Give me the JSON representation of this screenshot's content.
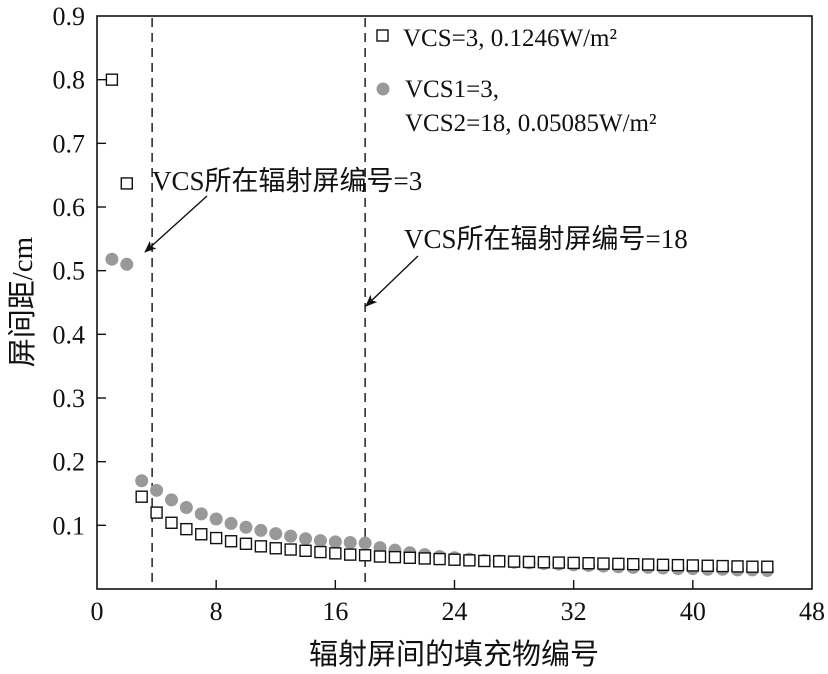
{
  "chart_data": {
    "type": "scatter",
    "xlabel": "辐射屏间的填充物编号",
    "ylabel": "屏间距/cm",
    "xlim": [
      0,
      48
    ],
    "ylim": [
      0,
      0.9
    ],
    "xticks": [
      0,
      8,
      16,
      24,
      32,
      40,
      48
    ],
    "xtick_labels": [
      "0",
      "8",
      "16",
      "24",
      "32",
      "40",
      "48"
    ],
    "yticks": [
      0.1,
      0.2,
      0.3,
      0.4,
      0.5,
      0.6,
      0.7,
      0.8,
      0.9
    ],
    "ytick_labels": [
      "0.1",
      "0.2",
      "0.3",
      "0.4",
      "0.5",
      "0.6",
      "0.7",
      "0.8",
      "0.9"
    ],
    "grid": false,
    "legend_position": "top-right",
    "series": [
      {
        "name": "VCS=3, 0.1246W/m²",
        "legend_lines": [
          "VCS=3, 0.1246W/m²"
        ],
        "marker": "open-square",
        "color": "#111111",
        "x": [
          1,
          2,
          3,
          4,
          5,
          6,
          7,
          8,
          9,
          10,
          11,
          12,
          13,
          14,
          15,
          16,
          17,
          18,
          19,
          20,
          21,
          22,
          23,
          24,
          25,
          26,
          27,
          28,
          29,
          30,
          31,
          32,
          33,
          34,
          35,
          36,
          37,
          38,
          39,
          40,
          41,
          42,
          43,
          44,
          45
        ],
        "y": [
          0.8,
          0.637,
          0.145,
          0.12,
          0.104,
          0.094,
          0.086,
          0.08,
          0.075,
          0.071,
          0.067,
          0.064,
          0.062,
          0.06,
          0.058,
          0.056,
          0.054,
          0.053,
          0.051,
          0.05,
          0.049,
          0.048,
          0.047,
          0.046,
          0.045,
          0.044,
          0.0435,
          0.043,
          0.0425,
          0.042,
          0.0415,
          0.041,
          0.0405,
          0.04,
          0.0395,
          0.039,
          0.0385,
          0.038,
          0.0375,
          0.037,
          0.0365,
          0.036,
          0.0355,
          0.035,
          0.035
        ]
      },
      {
        "name": "VCS1=3, VCS2=18, 0.05085W/m²",
        "legend_lines": [
          "VCS1=3,",
          "VCS2=18, 0.05085W/m²"
        ],
        "marker": "filled-circle",
        "color": "#999999",
        "x": [
          1,
          2,
          3,
          4,
          5,
          6,
          7,
          8,
          9,
          10,
          11,
          12,
          13,
          14,
          15,
          16,
          17,
          18,
          19,
          20,
          21,
          22,
          23,
          24,
          25,
          26,
          27,
          28,
          29,
          30,
          31,
          32,
          33,
          34,
          35,
          36,
          37,
          38,
          39,
          40,
          41,
          42,
          43,
          44,
          45
        ],
        "y": [
          0.518,
          0.51,
          0.17,
          0.155,
          0.14,
          0.128,
          0.118,
          0.11,
          0.103,
          0.097,
          0.092,
          0.087,
          0.083,
          0.079,
          0.076,
          0.074,
          0.073,
          0.072,
          0.065,
          0.061,
          0.057,
          0.054,
          0.051,
          0.049,
          0.047,
          0.045,
          0.044,
          0.042,
          0.041,
          0.04,
          0.039,
          0.038,
          0.037,
          0.036,
          0.035,
          0.034,
          0.034,
          0.033,
          0.032,
          0.032,
          0.031,
          0.031,
          0.03,
          0.03,
          0.029
        ]
      }
    ],
    "annotations": [
      {
        "text": "VCS所在辐射屏编号=3",
        "dashed_line_x": 3.7,
        "arrow_to": [
          3.7,
          0.52
        ]
      },
      {
        "text": "VCS所在辐射屏编号=18",
        "dashed_line_x": 18.0,
        "arrow_to": [
          18.0,
          0.44
        ]
      }
    ]
  }
}
